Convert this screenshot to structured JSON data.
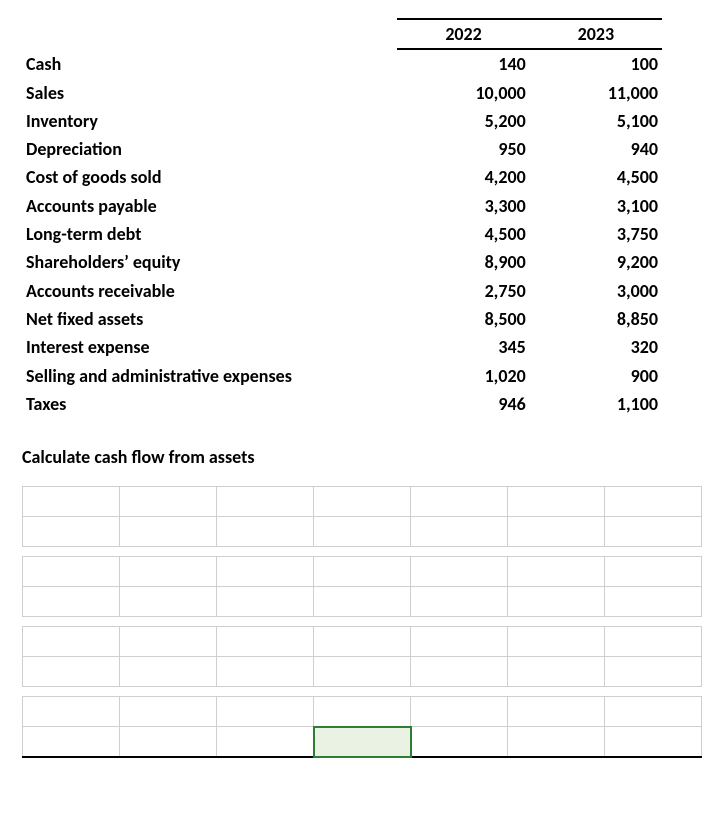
{
  "table": {
    "columns": [
      "2022",
      "2023"
    ],
    "rows": [
      {
        "label": "Cash",
        "y2022": "140",
        "y2023": "100"
      },
      {
        "label": "Sales",
        "y2022": "10,000",
        "y2023": "11,000"
      },
      {
        "label": "Inventory",
        "y2022": "5,200",
        "y2023": "5,100"
      },
      {
        "label": "Depreciation",
        "y2022": "950",
        "y2023": "940"
      },
      {
        "label": "Cost of goods sold",
        "y2022": "4,200",
        "y2023": "4,500"
      },
      {
        "label": "Accounts payable",
        "y2022": "3,300",
        "y2023": "3,100"
      },
      {
        "label": "Long-term debt",
        "y2022": "4,500",
        "y2023": "3,750"
      },
      {
        "label": "Shareholders’ equity",
        "y2022": "8,900",
        "y2023": "9,200"
      },
      {
        "label": "Accounts receivable",
        "y2022": "2,750",
        "y2023": "3,000"
      },
      {
        "label": "Net fixed assets",
        "y2022": "8,500",
        "y2023": "8,850"
      },
      {
        "label": "Interest expense",
        "y2022": "345",
        "y2023": "320"
      },
      {
        "label": "Selling and administrative expenses",
        "y2022": "1,020",
        "y2023": "900"
      },
      {
        "label": "Taxes",
        "y2022": "946",
        "y2023": "1,100"
      }
    ]
  },
  "prompt": "Calculate cash flow from assets",
  "grid": {
    "columns": 7,
    "group_rows": 2,
    "groups": 4,
    "selected_cell": {
      "group": 3,
      "row": 1,
      "col": 3
    }
  },
  "style": {
    "font_family": "Calibri, Arial, sans-serif",
    "font_size_pt": 13,
    "text_color": "#000000",
    "background": "#ffffff",
    "grid_border": "#cfcfcf",
    "heavy_border": "#000000",
    "selected_fill": "#eaf2e3",
    "selected_outline": "#2e7d32"
  }
}
